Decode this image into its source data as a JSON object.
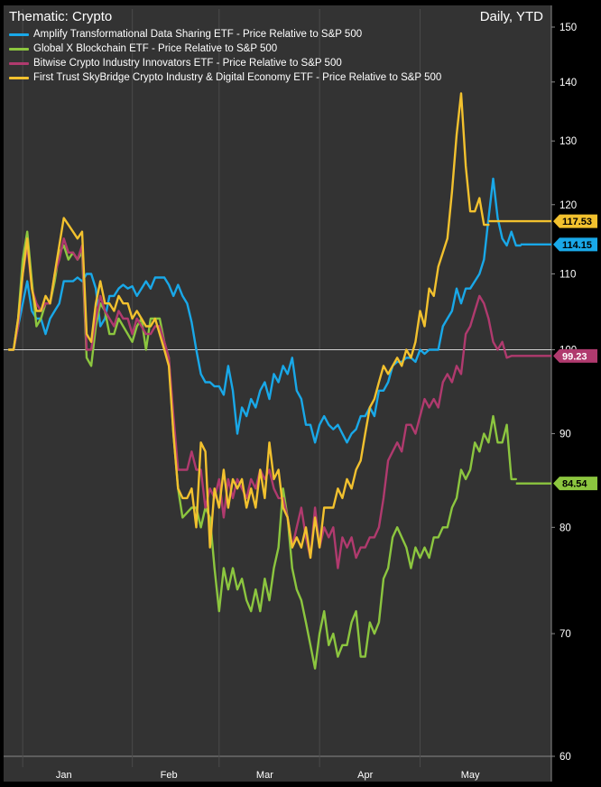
{
  "header": {
    "title": "Thematic: Crypto",
    "period": "Daily, YTD"
  },
  "chart_data": {
    "type": "line",
    "title": "Thematic: Crypto",
    "subtitle": "Daily, YTD",
    "xlabel": "",
    "ylabel": "",
    "yscale": "log",
    "ylim": [
      60,
      150
    ],
    "yticks": [
      60,
      70,
      80,
      90,
      100,
      110,
      120,
      130,
      140,
      150
    ],
    "xlim": [
      0,
      115
    ],
    "xticks": [
      {
        "label": "Jan",
        "x": 12
      },
      {
        "label": "Feb",
        "x": 35
      },
      {
        "label": "Mar",
        "x": 56
      },
      {
        "label": "Apr",
        "x": 78
      },
      {
        "label": "May",
        "x": 101
      }
    ],
    "month_separators": [
      3,
      27,
      46,
      68,
      90
    ],
    "reference_line": 100,
    "grid": false,
    "legend_position": "top-left",
    "series": [
      {
        "name": "Amplify Transformational Data Sharing ETF - Price Relative to S&P 500",
        "color": "#19a8e8",
        "last_label": "114.15",
        "values": [
          100,
          100,
          103,
          106,
          109,
          105,
          104,
          104,
          102,
          104,
          105,
          106,
          109,
          109,
          109,
          109.5,
          109,
          110,
          110,
          108,
          103,
          104,
          107,
          107,
          108,
          108.5,
          108,
          108.3,
          107,
          108,
          109,
          108,
          109.5,
          109.5,
          109.5,
          108.5,
          107,
          108.5,
          107,
          106,
          103.5,
          100,
          97,
          96,
          96,
          95.5,
          95.5,
          94.5,
          98,
          95,
          90,
          93,
          92,
          94,
          93,
          95,
          96,
          94,
          97,
          96,
          98,
          97,
          99,
          95,
          94,
          91,
          91,
          89,
          91,
          92,
          91,
          90.5,
          91,
          90,
          89,
          90,
          90.5,
          92,
          92,
          93,
          92,
          95,
          95,
          96,
          98,
          98.5,
          98.5,
          99,
          99,
          98.5,
          100,
          99.5,
          100,
          100,
          100,
          103,
          104,
          105,
          108,
          106,
          108,
          108,
          109,
          110,
          112,
          118,
          124,
          118,
          115,
          114,
          116,
          114,
          114
        ],
        "xs": [
          0,
          1,
          2,
          3,
          4,
          5,
          6,
          7,
          8,
          9,
          10,
          11,
          12,
          13,
          14,
          15,
          16,
          17,
          18,
          19,
          20,
          21,
          22,
          23,
          24,
          25,
          26,
          27,
          28,
          29,
          30,
          31,
          32,
          33,
          34,
          35,
          36,
          37,
          38,
          39,
          40,
          41,
          42,
          43,
          44,
          45,
          46,
          47,
          48,
          49,
          50,
          51,
          52,
          53,
          54,
          55,
          56,
          57,
          58,
          59,
          60,
          61,
          62,
          63,
          64,
          65,
          66,
          67,
          68,
          69,
          70,
          71,
          72,
          73,
          74,
          75,
          76,
          77,
          78,
          79,
          80,
          81,
          82,
          83,
          84,
          85,
          86,
          87,
          88,
          89,
          90,
          91,
          92,
          93,
          94,
          95,
          96,
          97,
          98,
          99,
          100,
          101,
          102,
          103,
          104,
          105,
          106,
          107,
          108,
          109,
          110,
          111,
          112
        ]
      },
      {
        "name": "Global X Blockchain ETF - Price Relative to S&P 500",
        "color": "#8cc63f",
        "last_label": "84.54",
        "values": [
          100,
          100,
          104,
          112,
          116,
          109,
          103,
          104,
          106,
          106,
          109,
          113,
          114,
          112,
          113,
          112,
          113,
          99,
          98,
          103,
          106,
          105,
          102,
          102,
          104,
          103,
          102,
          101,
          103,
          104,
          100,
          104,
          104,
          104,
          101,
          99,
          90,
          84,
          81,
          81.5,
          82,
          82,
          80,
          82,
          81,
          76,
          72,
          76,
          74,
          76,
          74,
          75,
          73,
          72,
          74,
          72,
          75,
          73,
          76,
          78,
          84,
          81,
          76,
          74,
          73,
          71,
          69,
          67,
          70,
          72,
          69,
          70,
          68,
          69,
          69,
          71,
          72,
          68,
          68,
          71,
          70,
          71,
          75,
          76,
          79,
          80,
          79,
          78,
          76,
          78,
          77,
          78,
          77,
          79,
          79,
          80,
          80,
          82,
          83,
          86,
          85,
          86,
          89,
          88,
          90,
          89,
          92,
          89,
          89,
          91,
          85,
          85
        ],
        "xs": [
          0,
          1,
          2,
          3,
          4,
          5,
          6,
          7,
          8,
          9,
          10,
          11,
          12,
          13,
          14,
          15,
          16,
          17,
          18,
          19,
          20,
          21,
          22,
          23,
          24,
          25,
          26,
          27,
          28,
          29,
          30,
          31,
          32,
          33,
          34,
          35,
          36,
          37,
          38,
          39,
          40,
          41,
          42,
          43,
          44,
          45,
          46,
          47,
          48,
          49,
          50,
          51,
          52,
          53,
          54,
          55,
          56,
          57,
          58,
          59,
          60,
          61,
          62,
          63,
          64,
          65,
          66,
          67,
          68,
          69,
          70,
          71,
          72,
          73,
          74,
          75,
          76,
          77,
          78,
          79,
          80,
          81,
          82,
          83,
          84,
          85,
          86,
          87,
          88,
          89,
          90,
          91,
          92,
          93,
          94,
          95,
          96,
          97,
          98,
          99,
          100,
          101,
          102,
          103,
          104,
          105,
          106,
          107,
          108,
          109,
          110,
          111
        ]
      },
      {
        "name": "Bitwise Crypto Industry Innovators ETF - Price Relative to S&P 500",
        "color": "#b03a6e",
        "last_label": "99.23",
        "values": [
          100,
          100,
          103,
          110,
          114,
          108,
          106,
          105,
          106,
          106,
          110,
          112,
          115,
          113,
          113,
          112,
          114,
          100,
          100,
          104,
          107,
          105,
          104,
          103,
          105,
          104,
          104,
          102,
          104,
          103,
          102,
          102,
          103,
          103,
          101,
          99,
          92,
          86,
          86,
          86,
          88,
          86,
          86,
          82,
          84,
          83,
          85,
          81,
          85,
          83,
          85,
          84,
          83,
          85,
          84,
          86,
          85,
          86,
          84,
          83,
          83,
          81,
          78,
          80,
          82,
          79,
          77,
          82,
          78,
          80,
          79,
          80,
          76,
          79,
          78,
          79,
          77,
          78,
          78,
          79,
          79,
          80,
          83,
          87,
          88,
          89,
          88,
          91,
          91,
          90,
          92,
          94,
          93,
          94,
          93,
          96,
          97,
          96,
          98,
          97,
          102,
          103,
          105,
          107,
          106,
          104,
          101,
          100,
          101,
          99,
          99.23
        ],
        "xs": [
          0,
          1,
          2,
          3,
          4,
          5,
          6,
          7,
          8,
          9,
          10,
          11,
          12,
          13,
          14,
          15,
          16,
          17,
          18,
          19,
          20,
          21,
          22,
          23,
          24,
          25,
          26,
          27,
          28,
          29,
          30,
          31,
          32,
          33,
          34,
          35,
          36,
          37,
          38,
          39,
          40,
          41,
          42,
          43,
          44,
          45,
          46,
          47,
          48,
          49,
          50,
          51,
          52,
          53,
          54,
          55,
          56,
          57,
          58,
          59,
          60,
          61,
          62,
          63,
          64,
          65,
          66,
          67,
          68,
          69,
          70,
          71,
          72,
          73,
          74,
          75,
          76,
          77,
          78,
          79,
          80,
          81,
          82,
          83,
          84,
          85,
          86,
          87,
          88,
          89,
          90,
          91,
          92,
          93,
          94,
          95,
          96,
          97,
          98,
          99,
          100,
          101,
          102,
          103,
          104,
          105,
          106,
          107,
          108,
          109,
          110
        ]
      },
      {
        "name": "First Trust SkyBridge Crypto Industry & Digital Economy ETF - Price Relative to S&P 500",
        "color": "#f2c12e",
        "last_label": "117.53",
        "values": [
          100,
          100,
          104,
          110,
          115,
          108,
          105,
          105,
          107,
          106,
          110,
          114,
          118,
          117,
          116,
          115,
          116,
          102,
          101,
          106,
          109,
          106,
          106,
          105,
          107,
          106,
          106,
          104,
          105,
          104,
          103,
          103,
          104,
          102,
          100,
          98,
          90,
          84,
          83,
          83,
          84,
          80,
          89,
          88,
          78,
          84,
          82,
          86,
          82,
          85,
          84,
          85,
          82,
          84,
          82,
          86,
          83,
          89,
          85,
          86,
          82,
          81,
          78,
          79,
          78,
          80,
          77,
          81,
          78,
          82,
          82,
          82,
          84,
          83,
          85,
          84,
          86,
          87,
          90,
          93,
          94,
          96,
          98,
          97,
          98,
          99,
          98,
          100,
          99,
          101,
          105,
          103,
          108,
          107,
          111,
          113,
          115,
          122,
          131,
          138,
          126,
          119,
          119,
          121,
          117,
          117
        ],
        "xs": [
          0,
          1,
          2,
          3,
          4,
          5,
          6,
          7,
          8,
          9,
          10,
          11,
          12,
          13,
          14,
          15,
          16,
          17,
          18,
          19,
          20,
          21,
          22,
          23,
          24,
          25,
          26,
          27,
          28,
          29,
          30,
          31,
          32,
          33,
          34,
          35,
          36,
          37,
          38,
          39,
          40,
          41,
          42,
          43,
          44,
          45,
          46,
          47,
          48,
          49,
          50,
          51,
          52,
          53,
          54,
          55,
          56,
          57,
          58,
          59,
          60,
          61,
          62,
          63,
          64,
          65,
          66,
          67,
          68,
          69,
          70,
          71,
          72,
          73,
          74,
          75,
          76,
          77,
          78,
          79,
          80,
          81,
          82,
          83,
          84,
          85,
          86,
          87,
          88,
          89,
          90,
          91,
          92,
          93,
          94,
          95,
          96,
          97,
          98,
          99,
          100,
          101,
          102,
          103,
          104,
          105,
          106,
          107,
          108,
          109,
          110,
          111
        ]
      }
    ]
  }
}
